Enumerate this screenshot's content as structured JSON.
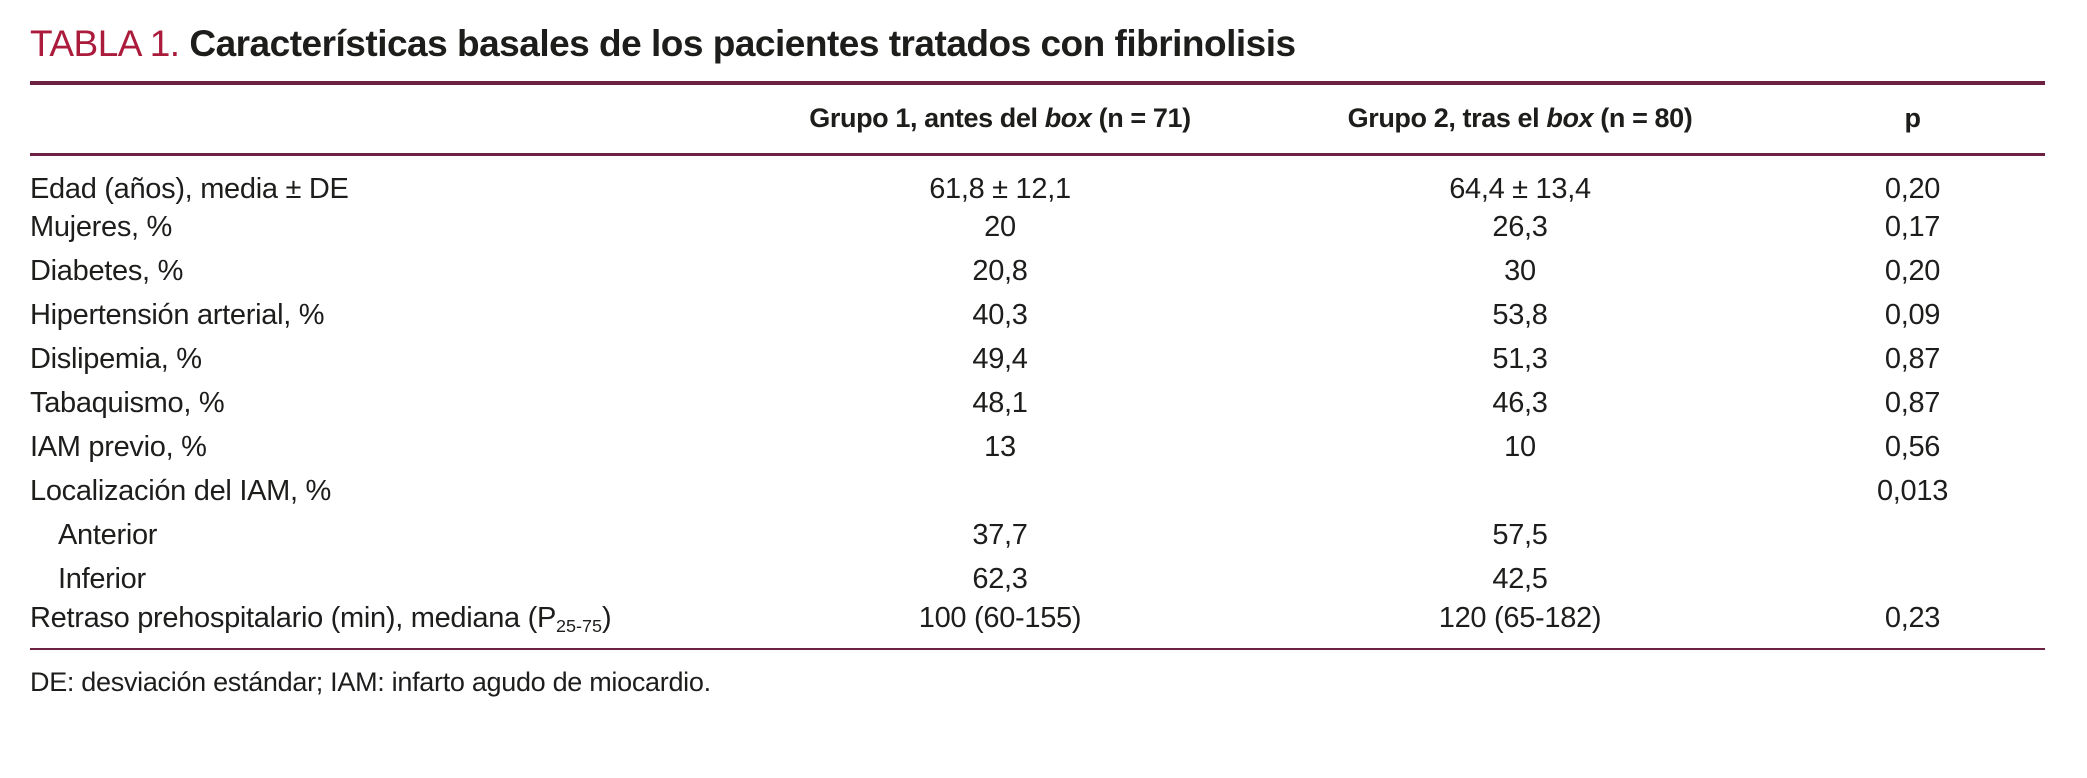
{
  "title": {
    "tag": "TABLA 1.",
    "text": "Características basales de los pacientes tratados con fibrinolisis"
  },
  "table": {
    "headers": {
      "col1": {
        "pre": "Grupo 1, antes del ",
        "italic": "box",
        "post": " (n = 71)"
      },
      "col2": {
        "pre": "Grupo 2, tras el ",
        "italic": "box",
        "post": " (n = 80)"
      },
      "col3": "p"
    },
    "rows": [
      {
        "label": "Edad (años), media ± DE",
        "indent": false,
        "g1": "61,8 ± 12,1",
        "g2": "64,4 ± 13,4",
        "p": "0,20"
      },
      {
        "label": "Mujeres, %",
        "indent": false,
        "g1": "20",
        "g2": "26,3",
        "p": "0,17"
      },
      {
        "label": "Diabetes, %",
        "indent": false,
        "g1": "20,8",
        "g2": "30",
        "p": "0,20"
      },
      {
        "label": "Hipertensión arterial, %",
        "indent": false,
        "g1": "40,3",
        "g2": "53,8",
        "p": "0,09"
      },
      {
        "label": "Dislipemia, %",
        "indent": false,
        "g1": "49,4",
        "g2": "51,3",
        "p": "0,87"
      },
      {
        "label": "Tabaquismo, %",
        "indent": false,
        "g1": "48,1",
        "g2": "46,3",
        "p": "0,87"
      },
      {
        "label": "IAM previo, %",
        "indent": false,
        "g1": "13",
        "g2": "10",
        "p": "0,56"
      },
      {
        "label": "Localización del IAM, %",
        "indent": false,
        "g1": "",
        "g2": "",
        "p": "0,013"
      },
      {
        "label": "Anterior",
        "indent": true,
        "g1": "37,7",
        "g2": "57,5",
        "p": ""
      },
      {
        "label": "Inferior",
        "indent": true,
        "g1": "62,3",
        "g2": "42,5",
        "p": ""
      },
      {
        "label": "Retraso prehospitalario (min), mediana (P",
        "label_sub": "25-75",
        "label_end": ")",
        "indent": false,
        "g1": "100 (60-155)",
        "g2": "120 (65-182)",
        "p": "0,23"
      }
    ]
  },
  "footnote": "DE: desviación estándar; IAM: infarto agudo de miocardio.",
  "colors": {
    "accent_red": "#ab1b3c",
    "rule_maroon": "#6d2243",
    "text": "#1d1d1b"
  }
}
